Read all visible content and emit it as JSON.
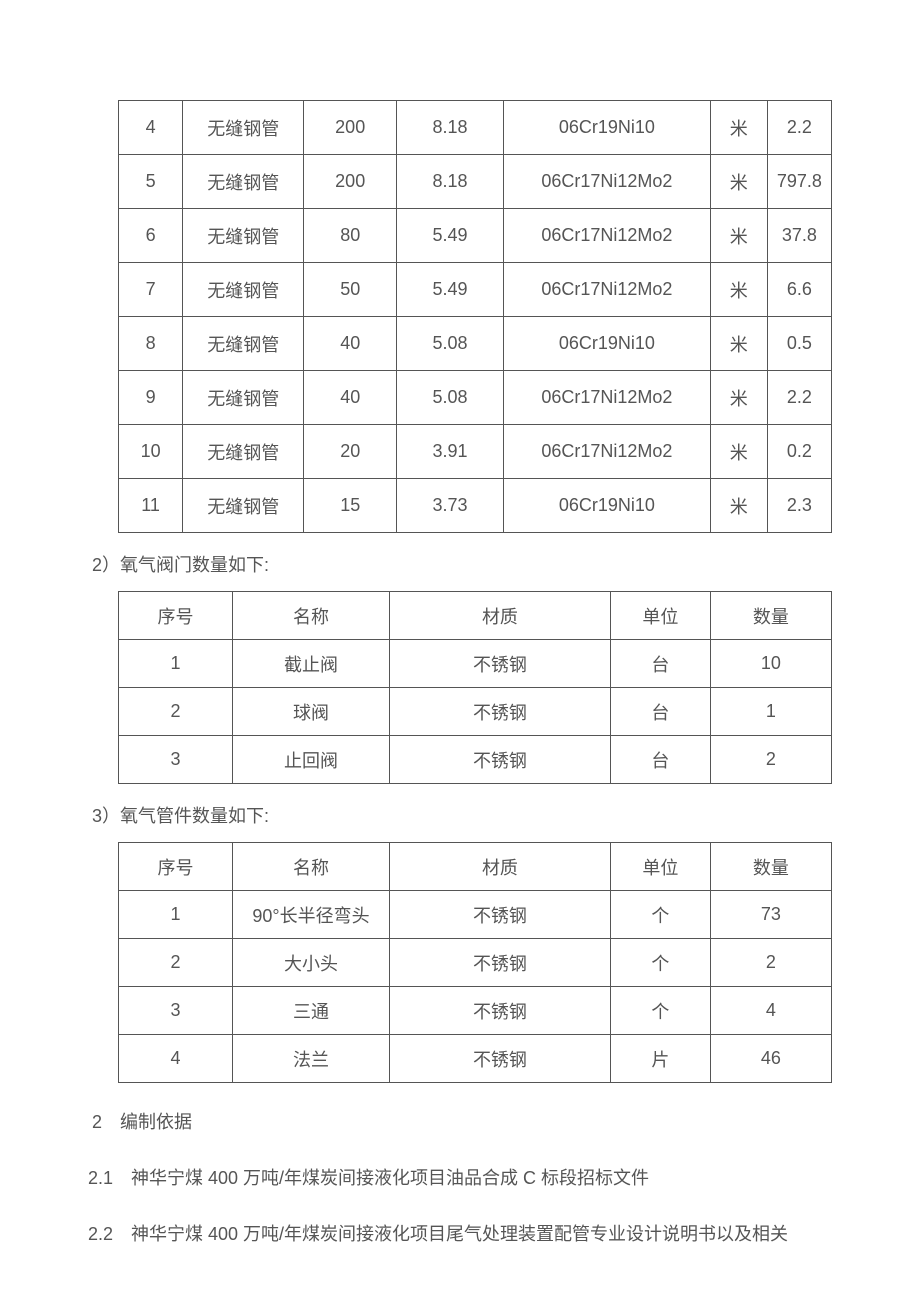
{
  "table1": {
    "col_widths": [
      "9%",
      "17%",
      "13%",
      "15%",
      "29%",
      "8%",
      "9%"
    ],
    "rows": [
      [
        "4",
        "无缝钢管",
        "200",
        "8.18",
        "06Cr19Ni10",
        "米",
        "2.2"
      ],
      [
        "5",
        "无缝钢管",
        "200",
        "8.18",
        "06Cr17Ni12Mo2",
        "米",
        "797.8"
      ],
      [
        "6",
        "无缝钢管",
        "80",
        "5.49",
        "06Cr17Ni12Mo2",
        "米",
        "37.8"
      ],
      [
        "7",
        "无缝钢管",
        "50",
        "5.49",
        "06Cr17Ni12Mo2",
        "米",
        "6.6"
      ],
      [
        "8",
        "无缝钢管",
        "40",
        "5.08",
        "06Cr19Ni10",
        "米",
        "0.5"
      ],
      [
        "9",
        "无缝钢管",
        "40",
        "5.08",
        "06Cr17Ni12Mo2",
        "米",
        "2.2"
      ],
      [
        "10",
        "无缝钢管",
        "20",
        "3.91",
        "06Cr17Ni12Mo2",
        "米",
        "0.2"
      ],
      [
        "11",
        "无缝钢管",
        "15",
        "3.73",
        "06Cr19Ni10",
        "米",
        "2.3"
      ]
    ]
  },
  "caption2": "2）氧气阀门数量如下:",
  "table2": {
    "col_widths": [
      "16%",
      "22%",
      "31%",
      "14%",
      "17%"
    ],
    "headers": [
      "序号",
      "名称",
      "材质",
      "单位",
      "数量"
    ],
    "rows": [
      [
        "1",
        "截止阀",
        "不锈钢",
        "台",
        "10"
      ],
      [
        "2",
        "球阀",
        "不锈钢",
        "台",
        "1"
      ],
      [
        "3",
        "止回阀",
        "不锈钢",
        "台",
        "2"
      ]
    ]
  },
  "caption3": "3）氧气管件数量如下:",
  "table3": {
    "col_widths": [
      "16%",
      "22%",
      "31%",
      "14%",
      "17%"
    ],
    "headers": [
      "序号",
      "名称",
      "材质",
      "单位",
      "数量"
    ],
    "rows": [
      [
        "1",
        "90°长半径弯头",
        "不锈钢",
        "个",
        "73"
      ],
      [
        "2",
        "大小头",
        "不锈钢",
        "个",
        "2"
      ],
      [
        "3",
        "三通",
        "不锈钢",
        "个",
        "4"
      ],
      [
        "4",
        "法兰",
        "不锈钢",
        "片",
        "46"
      ]
    ]
  },
  "para1": "2 编制依据",
  "para2": "2.1 神华宁煤 400 万吨/年煤炭间接液化项目油品合成 C 标段招标文件",
  "para3": "2.2 神华宁煤 400 万吨/年煤炭间接液化项目尾气处理装置配管专业设计说明书以及相关"
}
